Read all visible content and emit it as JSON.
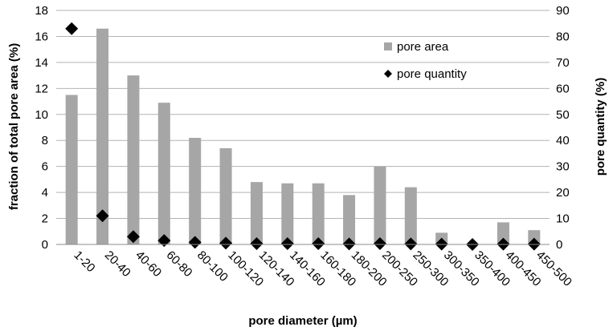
{
  "chart_data": {
    "type": "bar",
    "xlabel": "pore diameter (µm)",
    "ylabel_left": "fraction of total pore area (%)",
    "ylabel_right": "pore quantity (%)",
    "ylim_left": [
      0,
      18
    ],
    "ylim_right": [
      0,
      90
    ],
    "yticks_left": [
      0,
      2,
      4,
      6,
      8,
      10,
      12,
      14,
      16,
      18
    ],
    "yticks_right": [
      0,
      10,
      20,
      30,
      40,
      50,
      60,
      70,
      80,
      90
    ],
    "grid": "horizontal",
    "legend_position": "top-right",
    "categories": [
      "1-20",
      "20-40",
      "40-60",
      "60-80",
      "80-100",
      "100-120",
      "120-140",
      "140-160",
      "160-180",
      "180-200",
      "200-250",
      "250-300",
      "300-350",
      "350-400",
      "400-450",
      "450-500"
    ],
    "series": [
      {
        "name": "pore area",
        "kind": "bar",
        "axis": "left",
        "color": "#a6a6a6",
        "values": [
          11.5,
          16.6,
          13.0,
          10.9,
          8.2,
          7.4,
          4.8,
          4.7,
          4.7,
          3.8,
          6.0,
          4.4,
          0.9,
          0.0,
          1.7,
          1.1
        ]
      },
      {
        "name": "pore quantity",
        "kind": "marker",
        "axis": "right",
        "color": "#000000",
        "values": [
          83.0,
          11.0,
          3.0,
          1.5,
          0.8,
          0.5,
          0.3,
          0.3,
          0.3,
          0.2,
          0.3,
          0.2,
          0.1,
          0.0,
          0.1,
          0.1
        ]
      }
    ]
  }
}
